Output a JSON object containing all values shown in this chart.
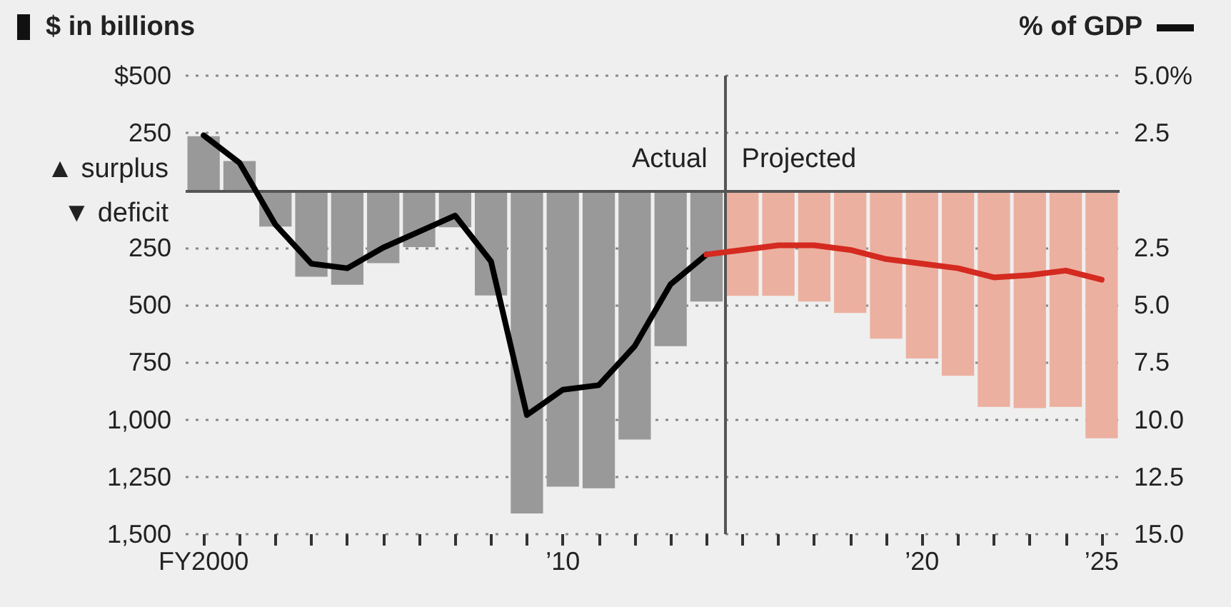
{
  "chart_data": {
    "type": "bar",
    "ylabel": "$ in billions",
    "y2label": "% of GDP",
    "x": [
      2000,
      2001,
      2002,
      2003,
      2004,
      2005,
      2006,
      2007,
      2008,
      2009,
      2010,
      2011,
      2012,
      2013,
      2014,
      2015,
      2016,
      2017,
      2018,
      2019,
      2020,
      2021,
      2022,
      2023,
      2024,
      2025
    ],
    "series": [
      {
        "colors": [
          "#999999",
          "#999999",
          "#999999",
          "#999999",
          "#999999",
          "#999999",
          "#999999",
          "#999999",
          "#999999",
          "#999999",
          "#999999",
          "#999999",
          "#999999",
          "#999999",
          "#999999",
          "#ecb0a0",
          "#ecb0a0",
          "#ecb0a0",
          "#ecb0a0",
          "#ecb0a0",
          "#ecb0a0",
          "#ecb0a0",
          "#ecb0a0",
          "#ecb0a0",
          "#ecb0a0",
          "#ecb0a0"
        ],
        "values": [
          236,
          128,
          -158,
          -377,
          -412,
          -318,
          -248,
          -161,
          -459,
          -1410,
          -1293,
          -1300,
          -1087,
          -680,
          -485,
          -460,
          -460,
          -485,
          -535,
          -647,
          -734,
          -809,
          -945,
          -950,
          -945,
          -1082
        ]
      },
      {
        "type": "line",
        "axis": "y2",
        "color": "#000000",
        "values": [
          2.4,
          1.2,
          -1.5,
          -3.2,
          -3.4,
          -2.5,
          -1.8,
          -1.1,
          -3.1,
          -9.8,
          -8.7,
          -8.5,
          -6.8,
          -4.1,
          -2.8,
          null,
          null,
          null,
          null,
          null,
          null,
          null,
          null,
          null,
          null,
          null
        ]
      },
      {
        "type": "line",
        "axis": "y2",
        "color": "#d42a20",
        "values": [
          null,
          null,
          null,
          null,
          null,
          null,
          null,
          null,
          null,
          null,
          null,
          null,
          null,
          null,
          -2.8,
          -2.6,
          -2.4,
          -2.4,
          -2.6,
          -3.0,
          -3.2,
          -3.4,
          -3.8,
          -3.7,
          -3.5,
          -3.9
        ]
      }
    ],
    "xlim": [
      1999.5,
      2025.5
    ],
    "xticks": [
      {
        "value": 2000,
        "label": "FY2000"
      },
      {
        "value": 2001,
        "label": null
      },
      {
        "value": 2002,
        "label": null
      },
      {
        "value": 2003,
        "label": null
      },
      {
        "value": 2004,
        "label": null
      },
      {
        "value": 2005,
        "label": null
      },
      {
        "value": 2006,
        "label": null
      },
      {
        "value": 2007,
        "label": null
      },
      {
        "value": 2008,
        "label": null
      },
      {
        "value": 2009,
        "label": null
      },
      {
        "value": 2010,
        "label": "’10"
      },
      {
        "value": 2011,
        "label": null
      },
      {
        "value": 2012,
        "label": null
      },
      {
        "value": 2013,
        "label": null
      },
      {
        "value": 2014,
        "label": null
      },
      {
        "value": 2015,
        "label": null
      },
      {
        "value": 2016,
        "label": null
      },
      {
        "value": 2017,
        "label": null
      },
      {
        "value": 2018,
        "label": null
      },
      {
        "value": 2019,
        "label": null
      },
      {
        "value": 2020,
        "label": "’20"
      },
      {
        "value": 2021,
        "label": null
      },
      {
        "value": 2022,
        "label": null
      },
      {
        "value": 2023,
        "label": null
      },
      {
        "value": 2024,
        "label": null
      },
      {
        "value": 2025,
        "label": "’25"
      }
    ],
    "ylim": [
      -1500,
      500
    ],
    "yticks": [
      {
        "value": 500,
        "label": "$500"
      },
      250,
      {
        "value": 0,
        "label": null
      },
      {
        "value": -250,
        "label": "250"
      },
      {
        "value": -500,
        "label": "500"
      },
      {
        "value": -750,
        "label": "750"
      },
      {
        "value": -1000,
        "label": "1,000"
      },
      {
        "value": -1250,
        "label": "1,250"
      },
      {
        "value": -1500,
        "label": "1,500"
      }
    ],
    "y2lim": [
      -15,
      5
    ],
    "y2ticks": [
      {
        "value": 5,
        "label": "5.0%"
      },
      2.5,
      {
        "value": 0,
        "label": null
      },
      {
        "value": -2.5,
        "label": "2.5"
      },
      {
        "value": -5,
        "label": "5.0"
      },
      {
        "value": -7.5,
        "label": "7.5"
      },
      {
        "value": -10,
        "label": "10.0"
      },
      {
        "value": -12.5,
        "label": "12.5"
      },
      {
        "value": -15,
        "label": "15.0"
      }
    ],
    "ref_lines": [
      {
        "axis": "y",
        "value": 0,
        "color": "#555555"
      },
      {
        "axis": "x",
        "value": 2014.5,
        "color": "#555555"
      }
    ],
    "annotations": [
      "Actual",
      "Projected",
      "▲ surplus",
      "▼ deficit"
    ],
    "grid": "y",
    "marker": "none",
    "line_style": "solid"
  }
}
